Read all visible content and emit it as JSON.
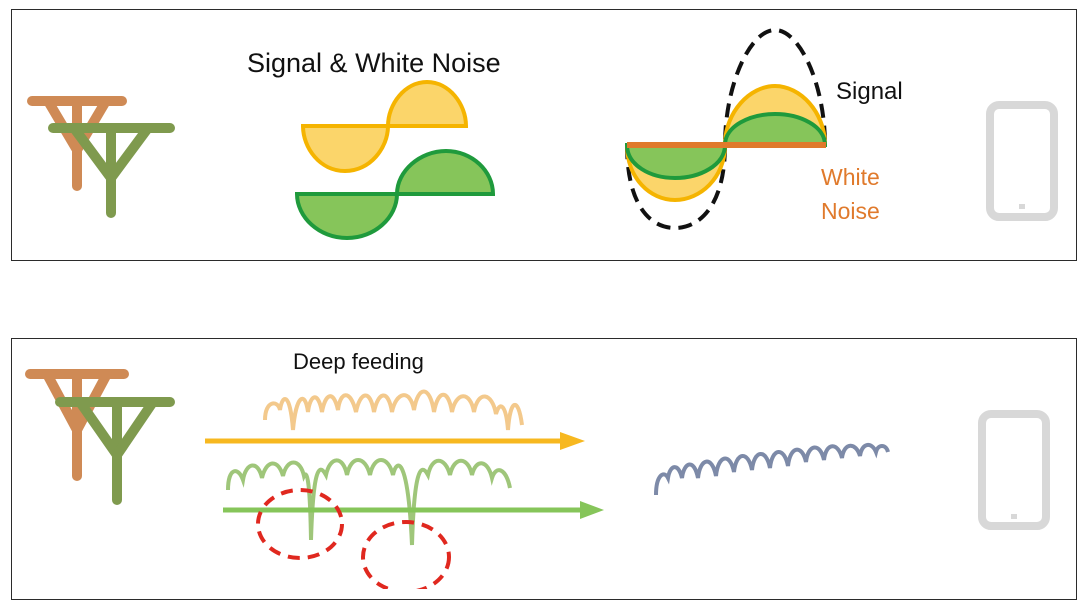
{
  "top_panel": {
    "title": "Signal & White Noise",
    "signal_label": "Signal",
    "noise_label_line1": "White",
    "noise_label_line2": "Noise"
  },
  "bottom_panel": {
    "title": "Deep feeding"
  },
  "colors": {
    "orange_tower": "#cf8a55",
    "green_tower": "#7f9a4e",
    "yellow_fill": "#fbd56a",
    "yellow_stroke": "#f5b400",
    "green_fill": "#86c55a",
    "green_stroke": "#1f9a3c",
    "noise_line": "#e07a2c",
    "orange_arrow": "#f7b820",
    "green_arrow": "#86c55a",
    "blue_wave": "#7d8aa8",
    "phone": "#d8d8d8",
    "red_circle": "#e0281f"
  },
  "icons": [
    "tower-icon",
    "phone-icon"
  ]
}
